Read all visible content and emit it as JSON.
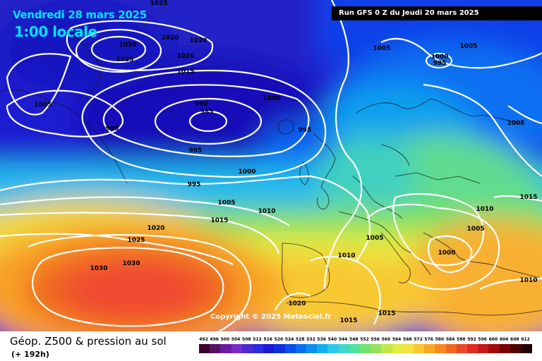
{
  "header": {
    "valid_date": "Vendredi 28 mars 2025",
    "local_time": "1:00 locale",
    "run_info": "Run GFS 0 Z du Jeudi 20 mars 2025"
  },
  "map": {
    "copyright": "Copyright © 2025 Meteociel.fr",
    "isobar_labels": [
      {
        "text": "1025"
      },
      {
        "text": "1020"
      },
      {
        "text": "1020"
      },
      {
        "text": "1030"
      },
      {
        "text": "1025"
      },
      {
        "text": "1020"
      },
      {
        "text": "1015"
      },
      {
        "text": "1005"
      },
      {
        "text": "1000"
      },
      {
        "text": "995"
      },
      {
        "text": "1005"
      },
      {
        "text": "990"
      },
      {
        "text": "985"
      },
      {
        "text": "1000"
      },
      {
        "text": "990"
      },
      {
        "text": "995"
      },
      {
        "text": "995"
      },
      {
        "text": "1000"
      },
      {
        "text": "995"
      },
      {
        "text": "1005"
      },
      {
        "text": "1005"
      },
      {
        "text": "1015"
      },
      {
        "text": "1010"
      },
      {
        "text": "1020"
      },
      {
        "text": "1025"
      },
      {
        "text": "1015"
      },
      {
        "text": "1010"
      },
      {
        "text": "1005"
      },
      {
        "text": "1010"
      },
      {
        "text": "1005"
      },
      {
        "text": "1000"
      },
      {
        "text": "1030"
      },
      {
        "text": "1030"
      },
      {
        "text": "1010"
      },
      {
        "text": "1020"
      },
      {
        "text": "1015"
      },
      {
        "text": "1015"
      }
    ]
  },
  "legend": {
    "parameter": "Géop. Z500 & pression au sol",
    "lead_time": "(+ 192h)",
    "scale_ticks": [
      "492",
      "496",
      "500",
      "504",
      "508",
      "512",
      "516",
      "520",
      "524",
      "528",
      "532",
      "536",
      "540",
      "544",
      "548",
      "552",
      "556",
      "560",
      "564",
      "568",
      "572",
      "576",
      "580",
      "584",
      "588",
      "592",
      "596",
      "600",
      "604",
      "608",
      "612"
    ],
    "scale_colors": [
      "#3a0030",
      "#5a1060",
      "#6a1aa0",
      "#7a2ac8",
      "#4a2ad0",
      "#2a2ae0",
      "#1a1ad8",
      "#1030e0",
      "#0a50ee",
      "#0a70f2",
      "#0a90f0",
      "#10b0ee",
      "#30c8e8",
      "#40d8c8",
      "#50e0a0",
      "#70e070",
      "#98e058",
      "#c0e848",
      "#e0ec40",
      "#f4e040",
      "#f8c830",
      "#f8a828",
      "#f88820",
      "#f06820",
      "#e84828",
      "#e02a20",
      "#c81818",
      "#a00c0c",
      "#780404",
      "#500000",
      "#200000"
    ]
  }
}
